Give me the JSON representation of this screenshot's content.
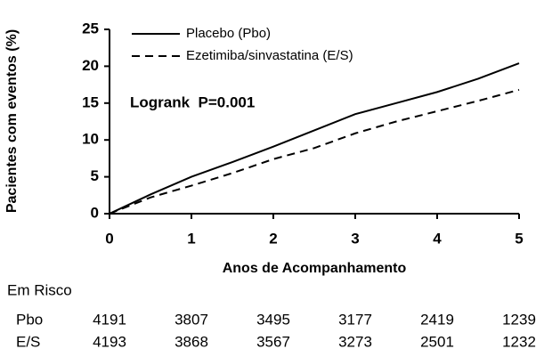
{
  "chart_data": {
    "type": "line",
    "y_label": "Pacientes com eventos (%)",
    "x_label": "Anos de Acompanhamento",
    "annotation": "Logrank  P=0.001",
    "x": [
      0,
      0.5,
      1,
      1.5,
      2,
      2.5,
      3,
      3.5,
      4,
      4.5,
      5
    ],
    "series": [
      {
        "name": "Placebo (Pbo)",
        "color": "#000000",
        "dash": "solid",
        "values": [
          0,
          2.6,
          5,
          7,
          9.1,
          11.3,
          13.5,
          15,
          16.5,
          18.3,
          20.4
        ]
      },
      {
        "name": "Ezetimiba/sinvastatina (E/S)",
        "color": "#000000",
        "dash": "dashed",
        "values": [
          0,
          2.2,
          3.8,
          5.5,
          7.4,
          8.9,
          10.9,
          12.5,
          13.9,
          15.3,
          16.8
        ]
      }
    ],
    "xlim": [
      0,
      5
    ],
    "xticks": [
      0,
      1,
      2,
      3,
      4,
      5
    ],
    "ylim": [
      0,
      25
    ],
    "yticks": [
      0,
      5,
      10,
      15,
      20,
      25
    ],
    "grid": false,
    "legend": "top",
    "at_risk": {
      "title": "Em Risco",
      "rows": [
        {
          "label": "Pbo",
          "values": [
            4191,
            3807,
            3495,
            3177,
            2419,
            1239
          ]
        },
        {
          "label": "E/S",
          "values": [
            4193,
            3868,
            3567,
            3273,
            2501,
            1232
          ]
        }
      ]
    }
  }
}
